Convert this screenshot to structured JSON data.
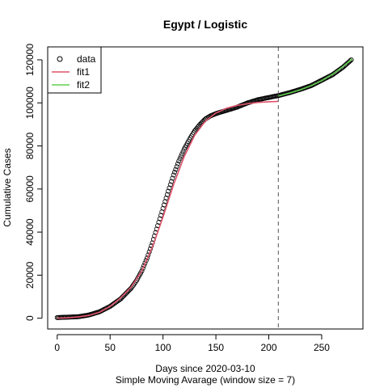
{
  "chart_data": {
    "type": "scatter",
    "title": "Egypt / Logistic",
    "xlabel": "Days since 2020-03-10",
    "xlabel2": "Simple Moving Avarage (window size = 7)",
    "ylabel": "Cumulative Cases",
    "xlim": [
      -9,
      289
    ],
    "ylim": [
      -5000,
      126000
    ],
    "xticks": [
      0,
      50,
      100,
      150,
      200,
      250
    ],
    "yticks": [
      0,
      20000,
      40000,
      60000,
      80000,
      100000,
      120000
    ],
    "vline_x": 209,
    "legend_position": "top-left",
    "legend": [
      {
        "label": "data",
        "kind": "point",
        "color": "#000000"
      },
      {
        "label": "fit1",
        "kind": "line",
        "color": "#DF536B"
      },
      {
        "label": "fit2",
        "kind": "line",
        "color": "#61D04F"
      }
    ],
    "series": [
      {
        "name": "data",
        "kind": "points",
        "color": "#000000",
        "x": [
          0,
          10,
          20,
          30,
          40,
          50,
          60,
          65,
          70,
          75,
          80,
          85,
          90,
          95,
          100,
          105,
          110,
          115,
          120,
          125,
          130,
          135,
          140,
          145,
          150,
          155,
          160,
          170,
          180,
          190,
          200,
          210,
          220,
          230,
          240,
          250,
          260,
          270,
          278
        ],
        "y": [
          300,
          500,
          700,
          1500,
          3000,
          5500,
          9000,
          11500,
          14000,
          17500,
          22000,
          28000,
          35000,
          43000,
          51000,
          59000,
          66500,
          73000,
          78500,
          83000,
          87000,
          90000,
          92500,
          94000,
          95000,
          95800,
          96500,
          98000,
          100000,
          101500,
          102500,
          103500,
          104800,
          106300,
          108000,
          110500,
          113000,
          116500,
          120000
        ]
      },
      {
        "name": "fit1",
        "kind": "line",
        "color": "#DF536B",
        "x": [
          0,
          10,
          20,
          30,
          40,
          50,
          60,
          70,
          80,
          90,
          100,
          110,
          120,
          130,
          140,
          150,
          160,
          170,
          180,
          190,
          200,
          209
        ],
        "y": [
          0,
          200,
          600,
          1300,
          2800,
          5500,
          9500,
          14500,
          22000,
          33000,
          47000,
          62000,
          75000,
          85000,
          91500,
          95300,
          97500,
          98800,
          99600,
          100200,
          100500,
          100700
        ]
      },
      {
        "name": "fit2",
        "kind": "line",
        "color": "#61D04F",
        "x": [
          209,
          220,
          230,
          240,
          250,
          260,
          270,
          279
        ],
        "y": [
          103200,
          104600,
          106100,
          108000,
          110300,
          113200,
          116800,
          120500
        ]
      }
    ]
  }
}
